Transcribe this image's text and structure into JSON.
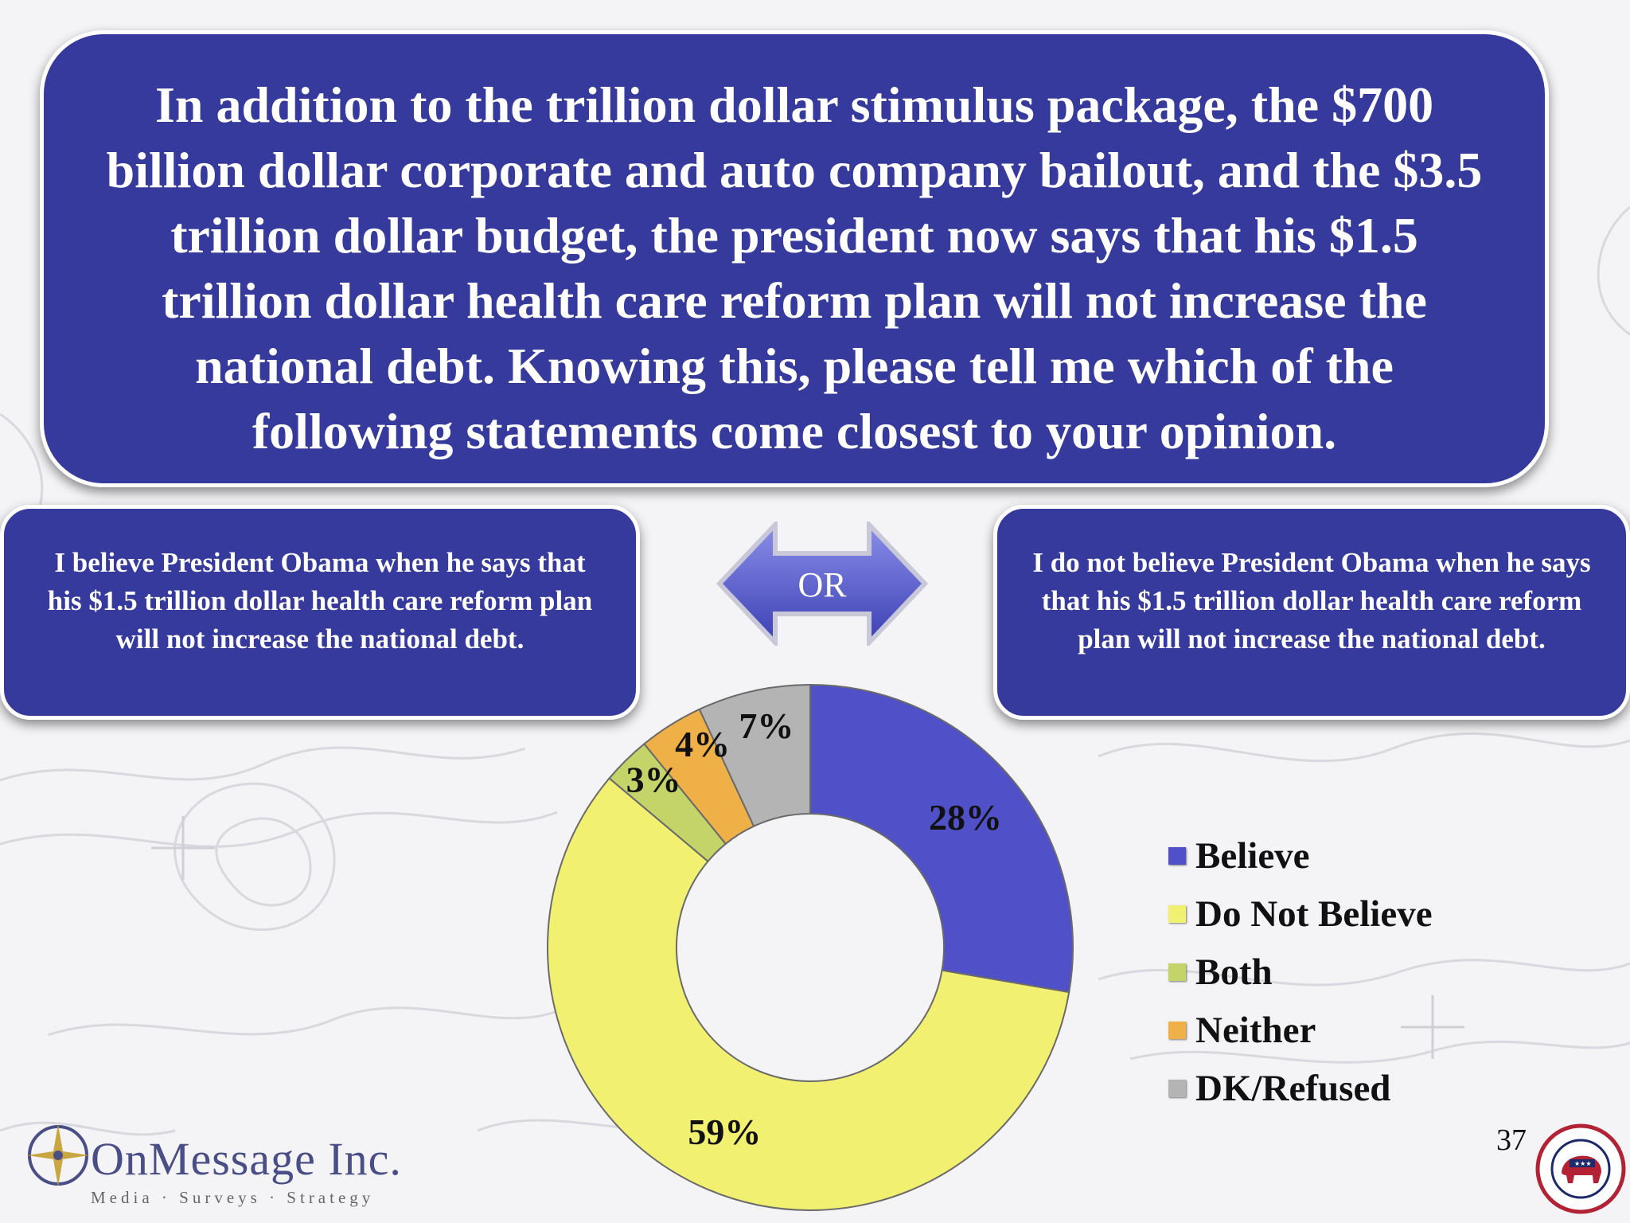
{
  "question": "In addition to the trillion dollar stimulus package, the $700 billion dollar corporate and auto company bailout, and the $3.5 trillion dollar budget, the president now says that his $1.5 trillion dollar health care reform plan will not increase the national debt.  Knowing this, please tell me which of the following statements come closest to your opinion.",
  "left_statement": "I believe President Obama when he says that his $1.5 trillion dollar health care reform plan will not increase the national debt.",
  "right_statement": "I do not believe President Obama when he says that his $1.5 trillion dollar health care reform plan will not increase the national debt.",
  "or_label": "OR",
  "page_number": "37",
  "logo": {
    "name": "OnMessage Inc.",
    "tagline": "Media · Surveys · Strategy",
    "seal_text": "Republican National Committee"
  },
  "chart_data": {
    "type": "pie",
    "style": "donut",
    "legend_position": "right",
    "categories": [
      "Believe",
      "Do Not Believe",
      "Both",
      "Neither",
      "DK/Refused"
    ],
    "values": [
      28,
      59,
      3,
      4,
      7
    ],
    "data_labels": [
      "28%",
      "59%",
      "3%",
      "4%",
      "7%"
    ],
    "colors": [
      "#5050c8",
      "#f2f070",
      "#c4d468",
      "#f0b048",
      "#b4b4b4"
    ]
  }
}
